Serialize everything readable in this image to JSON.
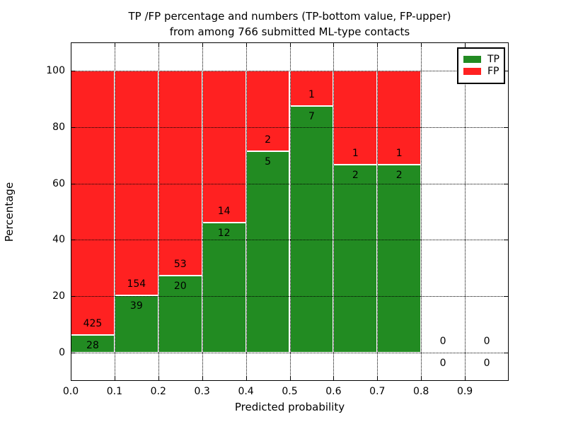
{
  "chart_data": {
    "type": "bar",
    "stacked": true,
    "title_line1": "TP /FP percentage and numbers (TP-bottom value, FP-upper)",
    "title_line2": "from among 766 submitted ML-type contacts",
    "xlabel": "Predicted probability",
    "ylabel": "Percentage",
    "xlim": [
      0.0,
      1.0
    ],
    "ylim": [
      -10,
      110
    ],
    "xtick_labels": [
      "0.0",
      "0.1",
      "0.2",
      "0.3",
      "0.4",
      "0.5",
      "0.6",
      "0.7",
      "0.8",
      "0.9"
    ],
    "ytick_values": [
      0,
      20,
      40,
      60,
      80,
      100
    ],
    "grid": "dotted",
    "bar_width": 0.1,
    "bin_starts": [
      0.0,
      0.1,
      0.2,
      0.3,
      0.4,
      0.5,
      0.6,
      0.7,
      0.8,
      0.9
    ],
    "series": [
      {
        "name": "TP",
        "values": [
          28,
          39,
          20,
          12,
          5,
          7,
          2,
          2,
          0,
          0
        ]
      },
      {
        "name": "FP",
        "values": [
          425,
          154,
          53,
          14,
          2,
          1,
          1,
          1,
          0,
          0
        ]
      }
    ],
    "tp_percentages": [
      6.2,
      20.2,
      27.4,
      46.2,
      71.4,
      87.5,
      66.7,
      66.7,
      0,
      0
    ],
    "total_contacts": "766",
    "colors": {
      "tp": "#228b22",
      "fp": "#ff2121",
      "edge": "#ffffff",
      "grid": "#000000"
    },
    "legend": [
      {
        "label": "TP",
        "color": "#228b22"
      },
      {
        "label": "FP",
        "color": "#ff2121"
      }
    ],
    "legend_position": "upper right"
  }
}
